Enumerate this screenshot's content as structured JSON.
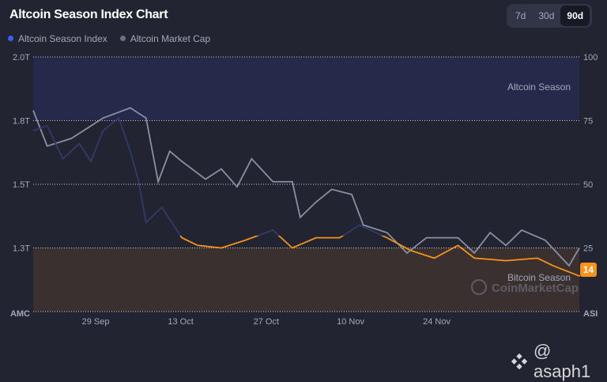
{
  "title": "Altcoin Season Index Chart",
  "tabs": [
    {
      "label": "7d"
    },
    {
      "label": "30d"
    },
    {
      "label": "90d",
      "active": true
    }
  ],
  "legend": [
    {
      "label": "Altcoin Season Index",
      "color": "#3861fb"
    },
    {
      "label": "Altcoin Market Cap",
      "color": "#6b6f80"
    }
  ],
  "zones": {
    "altcoin": "Altcoin Season",
    "bitcoin": "Bitcoin Season"
  },
  "watermark": "CoinMarketCap",
  "credit": "@ asaph1",
  "chart_data": {
    "type": "line",
    "title": "Altcoin Season Index Chart",
    "x_ticks": [
      {
        "day": 10.3,
        "label": "29 Sep"
      },
      {
        "day": 24.3,
        "label": "13 Oct"
      },
      {
        "day": 38.4,
        "label": "27 Oct"
      },
      {
        "day": 52.3,
        "label": "10 Nov"
      },
      {
        "day": 66.5,
        "label": "24 Nov"
      }
    ],
    "left_axis": {
      "label": "AMC",
      "range": [
        1.0,
        2.0
      ],
      "ticks": [
        {
          "v": 2.0,
          "label": "2.0T"
        },
        {
          "v": 1.75,
          "label": "1.8T"
        },
        {
          "v": 1.5,
          "label": "1.5T"
        },
        {
          "v": 1.25,
          "label": "1.3T"
        }
      ]
    },
    "right_axis": {
      "label": "ASI",
      "range": [
        0,
        100
      ],
      "ticks": [
        {
          "v": 100,
          "label": "100"
        },
        {
          "v": 75,
          "label": "75"
        },
        {
          "v": 50,
          "label": "50"
        },
        {
          "v": 25,
          "label": "25"
        }
      ]
    },
    "xrange": [
      0,
      90
    ],
    "series": [
      {
        "name": "Altcoin Season Index",
        "axis": "right",
        "points": [
          [
            0,
            71
          ],
          [
            2.3,
            73
          ],
          [
            4.9,
            60
          ],
          [
            7.6,
            66
          ],
          [
            9.5,
            59
          ],
          [
            11.5,
            71
          ],
          [
            14.1,
            76
          ],
          [
            16,
            63
          ],
          [
            17.3,
            52
          ],
          [
            18.6,
            35
          ],
          [
            21.2,
            41
          ],
          [
            24.5,
            29
          ],
          [
            27.1,
            26
          ],
          [
            31,
            25
          ],
          [
            34.9,
            28
          ],
          [
            39.5,
            32
          ],
          [
            42.7,
            25
          ],
          [
            46.6,
            29
          ],
          [
            50.5,
            29
          ],
          [
            53.8,
            34
          ],
          [
            58.3,
            29
          ],
          [
            62.2,
            24
          ],
          [
            66.1,
            21
          ],
          [
            70,
            26
          ],
          [
            72.7,
            21
          ],
          [
            77.9,
            20
          ],
          [
            83.1,
            21
          ],
          [
            85.7,
            18
          ],
          [
            90,
            14
          ]
        ]
      },
      {
        "name": "Altcoin Market Cap",
        "axis": "left",
        "points": [
          [
            0,
            1.79
          ],
          [
            2.3,
            1.65
          ],
          [
            6.3,
            1.68
          ],
          [
            11.5,
            1.76
          ],
          [
            16,
            1.8
          ],
          [
            18.6,
            1.76
          ],
          [
            20.6,
            1.51
          ],
          [
            22.5,
            1.63
          ],
          [
            24.5,
            1.59
          ],
          [
            28.4,
            1.52
          ],
          [
            31,
            1.56
          ],
          [
            33.6,
            1.49
          ],
          [
            36,
            1.6
          ],
          [
            39.5,
            1.51
          ],
          [
            42.7,
            1.51
          ],
          [
            44,
            1.37
          ],
          [
            46.6,
            1.43
          ],
          [
            49.2,
            1.48
          ],
          [
            52.5,
            1.46
          ],
          [
            54.4,
            1.34
          ],
          [
            58.3,
            1.31
          ],
          [
            61.6,
            1.23
          ],
          [
            64.8,
            1.29
          ],
          [
            70,
            1.29
          ],
          [
            72.7,
            1.23
          ],
          [
            75.3,
            1.31
          ],
          [
            77.9,
            1.26
          ],
          [
            80.5,
            1.32
          ],
          [
            84.4,
            1.28
          ],
          [
            88.3,
            1.18
          ],
          [
            90,
            1.25
          ]
        ]
      }
    ],
    "current_value": "14"
  }
}
